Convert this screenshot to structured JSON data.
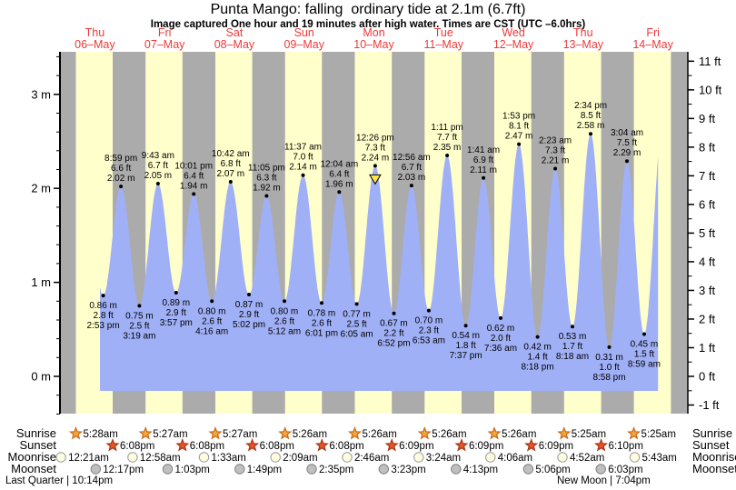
{
  "header": {
    "title": "Punta Mango: falling  ordinary tide at 2.1m (6.7ft)",
    "subtitle": "Image captured One hour and 19 minutes after high water. Times are CST (UTC –6.0hrs)"
  },
  "chart_data": {
    "type": "area",
    "title": "Punta Mango tide heights over 9 days",
    "x_axis": {
      "days": [
        {
          "name": "Thu",
          "date": "06–May"
        },
        {
          "name": "Fri",
          "date": "07–May"
        },
        {
          "name": "Sat",
          "date": "08–May"
        },
        {
          "name": "Sun",
          "date": "09–May"
        },
        {
          "name": "Mon",
          "date": "10–May"
        },
        {
          "name": "Tue",
          "date": "11–May"
        },
        {
          "name": "Wed",
          "date": "12–May"
        },
        {
          "name": "Thu",
          "date": "13–May"
        },
        {
          "name": "Fri",
          "date": "14–May"
        }
      ]
    },
    "y_axis_left": {
      "unit": "m",
      "ticks": [
        {
          "v": 0,
          "label": "0 m"
        },
        {
          "v": 1,
          "label": "1 m"
        },
        {
          "v": 2,
          "label": "2 m"
        },
        {
          "v": 3,
          "label": "3 m"
        }
      ],
      "minor_step": 0.2,
      "range_m": [
        -0.4,
        3.45
      ]
    },
    "y_axis_right": {
      "unit": "ft",
      "ticks": [
        {
          "v": -1,
          "label": "-1 ft"
        },
        {
          "v": 0,
          "label": "0 ft"
        },
        {
          "v": 1,
          "label": "1 ft"
        },
        {
          "v": 2,
          "label": "2 ft"
        },
        {
          "v": 3,
          "label": "3 ft"
        },
        {
          "v": 4,
          "label": "4 ft"
        },
        {
          "v": 5,
          "label": "5 ft"
        },
        {
          "v": 6,
          "label": "6 ft"
        },
        {
          "v": 7,
          "label": "7 ft"
        },
        {
          "v": 8,
          "label": "8 ft"
        },
        {
          "v": 9,
          "label": "9 ft"
        },
        {
          "v": 10,
          "label": "10 ft"
        },
        {
          "v": 11,
          "label": "11 ft"
        }
      ],
      "minor_step": 0.5
    },
    "tide_events": [
      {
        "type": "low",
        "day": 0,
        "time": "2:53 pm",
        "ft": 2.8,
        "m": 0.86
      },
      {
        "type": "high",
        "day": 0,
        "time": "8:59 pm",
        "ft": 6.6,
        "m": 2.02
      },
      {
        "type": "low",
        "day": 1,
        "time": "3:19 am",
        "ft": 2.5,
        "m": 0.75
      },
      {
        "type": "high",
        "day": 1,
        "time": "9:43 am",
        "ft": 6.7,
        "m": 2.05
      },
      {
        "type": "low",
        "day": 1,
        "time": "3:57 pm",
        "ft": 2.9,
        "m": 0.89
      },
      {
        "type": "high",
        "day": 1,
        "time": "10:01 pm",
        "ft": 6.4,
        "m": 1.94
      },
      {
        "type": "low",
        "day": 2,
        "time": "4:16 am",
        "ft": 2.6,
        "m": 0.8
      },
      {
        "type": "high",
        "day": 2,
        "time": "10:42 am",
        "ft": 6.8,
        "m": 2.07
      },
      {
        "type": "low",
        "day": 2,
        "time": "5:02 pm",
        "ft": 2.9,
        "m": 0.87
      },
      {
        "type": "high",
        "day": 2,
        "time": "11:05 pm",
        "ft": 6.3,
        "m": 1.92
      },
      {
        "type": "low",
        "day": 3,
        "time": "5:12 am",
        "ft": 2.6,
        "m": 0.8
      },
      {
        "type": "high",
        "day": 3,
        "time": "11:37 am",
        "ft": 7.0,
        "m": 2.14
      },
      {
        "type": "low",
        "day": 3,
        "time": "6:01 pm",
        "ft": 2.6,
        "m": 0.78
      },
      {
        "type": "high",
        "day": 4,
        "time": "12:04 am",
        "ft": 6.4,
        "m": 1.96
      },
      {
        "type": "low",
        "day": 4,
        "time": "6:05 am",
        "ft": 2.5,
        "m": 0.77
      },
      {
        "type": "high",
        "day": 4,
        "time": "12:26 pm",
        "ft": 7.3,
        "m": 2.24,
        "marker": true
      },
      {
        "type": "low",
        "day": 4,
        "time": "6:52 pm",
        "ft": 2.2,
        "m": 0.67
      },
      {
        "type": "high",
        "day": 5,
        "time": "12:56 am",
        "ft": 6.7,
        "m": 2.03
      },
      {
        "type": "low",
        "day": 5,
        "time": "6:53 am",
        "ft": 2.3,
        "m": 0.7
      },
      {
        "type": "high",
        "day": 5,
        "time": "1:11 pm",
        "ft": 7.7,
        "m": 2.35
      },
      {
        "type": "low",
        "day": 5,
        "time": "7:37 pm",
        "ft": 1.8,
        "m": 0.54
      },
      {
        "type": "high",
        "day": 6,
        "time": "1:41 am",
        "ft": 6.9,
        "m": 2.11
      },
      {
        "type": "low",
        "day": 6,
        "time": "7:36 am",
        "ft": 2.0,
        "m": 0.62
      },
      {
        "type": "high",
        "day": 6,
        "time": "1:53 pm",
        "ft": 8.1,
        "m": 2.47
      },
      {
        "type": "low",
        "day": 6,
        "time": "8:18 pm",
        "ft": 1.4,
        "m": 0.42
      },
      {
        "type": "high",
        "day": 7,
        "time": "2:23 am",
        "ft": 7.3,
        "m": 2.21
      },
      {
        "type": "low",
        "day": 7,
        "time": "8:18 am",
        "ft": 1.7,
        "m": 0.53
      },
      {
        "type": "high",
        "day": 7,
        "time": "2:34 pm",
        "ft": 8.5,
        "m": 2.58
      },
      {
        "type": "low",
        "day": 7,
        "time": "8:58 pm",
        "ft": 1.0,
        "m": 0.31
      },
      {
        "type": "high",
        "day": 8,
        "time": "3:04 am",
        "ft": 7.5,
        "m": 2.29
      },
      {
        "type": "low",
        "day": 8,
        "time": "8:59 am",
        "ft": 1.5,
        "m": 0.45
      }
    ],
    "colors": {
      "day_band": "#FFFFCC",
      "night_band": "#ABABAB",
      "water": "#A0B0F6",
      "day_label": "#EE3A3A",
      "marker_fill": "#FFE34D",
      "axis": "#000000"
    }
  },
  "almanac": {
    "left_labels": [
      "Sunrise",
      "Sunset",
      "Moonrise",
      "Moonset"
    ],
    "right_labels": [
      "Sunrise",
      "Sunset",
      "Moonrise",
      "Moonset"
    ],
    "rows": [
      {
        "name": "sunrise",
        "icon": "sunrise-star-icon",
        "events": [
          {
            "day": 0,
            "time": "5:28am"
          },
          {
            "day": 1,
            "time": "5:27am"
          },
          {
            "day": 2,
            "time": "5:27am"
          },
          {
            "day": 3,
            "time": "5:26am"
          },
          {
            "day": 4,
            "time": "5:26am"
          },
          {
            "day": 5,
            "time": "5:26am"
          },
          {
            "day": 6,
            "time": "5:26am"
          },
          {
            "day": 7,
            "time": "5:25am"
          },
          {
            "day": 8,
            "time": "5:25am"
          }
        ]
      },
      {
        "name": "sunset",
        "icon": "sunset-star-icon",
        "events": [
          {
            "day": 0,
            "time": "6:08pm"
          },
          {
            "day": 1,
            "time": "6:08pm"
          },
          {
            "day": 2,
            "time": "6:08pm"
          },
          {
            "day": 3,
            "time": "6:08pm"
          },
          {
            "day": 4,
            "time": "6:09pm"
          },
          {
            "day": 5,
            "time": "6:09pm"
          },
          {
            "day": 6,
            "time": "6:09pm"
          },
          {
            "day": 7,
            "time": "6:10pm"
          }
        ]
      },
      {
        "name": "moonrise",
        "icon": "moonrise-circle-icon",
        "events": [
          {
            "day": 0,
            "time": "12:21am"
          },
          {
            "day": 1,
            "time": "12:58am"
          },
          {
            "day": 2,
            "time": "1:33am"
          },
          {
            "day": 3,
            "time": "2:09am"
          },
          {
            "day": 4,
            "time": "2:46am"
          },
          {
            "day": 5,
            "time": "3:24am"
          },
          {
            "day": 6,
            "time": "4:06am"
          },
          {
            "day": 7,
            "time": "4:52am"
          },
          {
            "day": 8,
            "time": "5:43am"
          }
        ]
      },
      {
        "name": "moonset",
        "icon": "moonset-circle-icon",
        "events": [
          {
            "day": 0,
            "time": "12:17pm"
          },
          {
            "day": 1,
            "time": "1:03pm"
          },
          {
            "day": 2,
            "time": "1:49pm"
          },
          {
            "day": 3,
            "time": "2:35pm"
          },
          {
            "day": 4,
            "time": "3:23pm"
          },
          {
            "day": 5,
            "time": "4:13pm"
          },
          {
            "day": 6,
            "time": "5:06pm"
          },
          {
            "day": 7,
            "time": "6:03pm"
          }
        ]
      }
    ],
    "icon_colors": {
      "sunrise_fill": "#F2A93B",
      "sunrise_stroke": "#C9671D",
      "sunset_fill": "#E45527",
      "sunset_stroke": "#A93415",
      "moonrise_fill": "#FFFDE1",
      "moonrise_stroke": "#999999",
      "moonset_fill": "#BFBFBF",
      "moonset_stroke": "#808080"
    },
    "footer_left": "Last Quarter | 10:14pm",
    "footer_right": "New Moon | 7:04pm"
  }
}
